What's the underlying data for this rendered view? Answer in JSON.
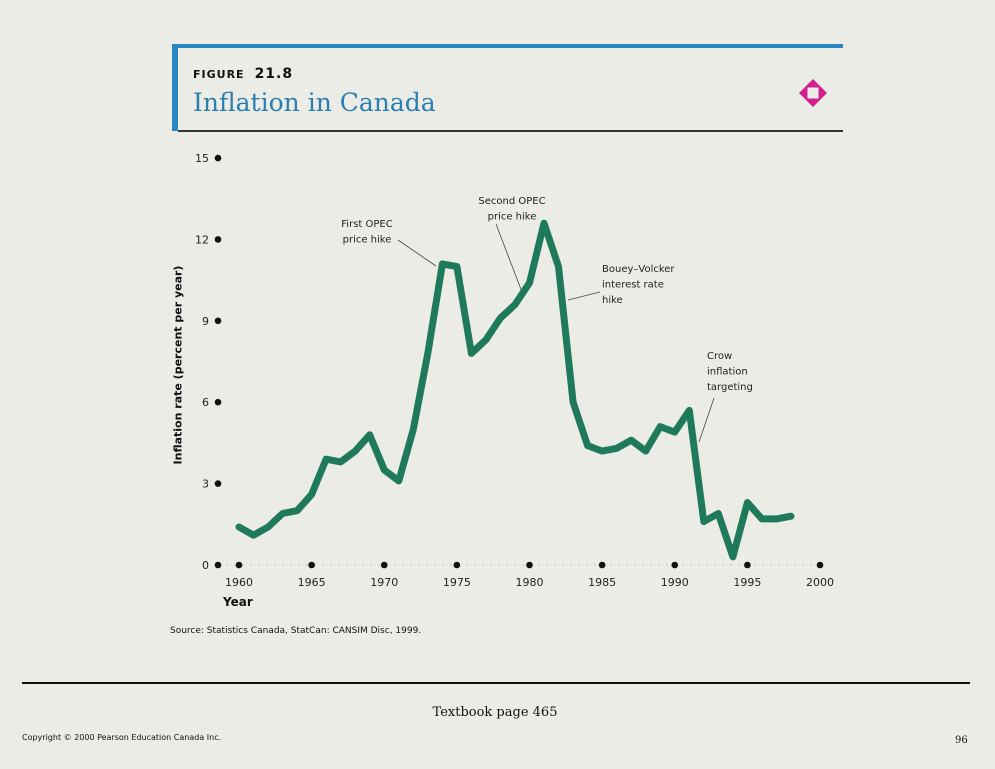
{
  "header": {
    "figure_label": "FIGURE",
    "figure_number": "21.8",
    "title": "Inflation in Canada",
    "accent_color": "#2a86c0",
    "icon": "diamond-icon",
    "icon_color": "#d0208f"
  },
  "chart_data": {
    "type": "line",
    "title": "Inflation in Canada",
    "xlabel": "Year",
    "ylabel": "Inflation rate (percent per year)",
    "xlim": [
      1958,
      2000
    ],
    "ylim": [
      0,
      15
    ],
    "x_ticks": [
      "1960",
      "1965",
      "1970",
      "1975",
      "1980",
      "1985",
      "1990",
      "1995",
      "2000"
    ],
    "y_ticks": [
      "0",
      "3",
      "6",
      "9",
      "12",
      "15"
    ],
    "grid": false,
    "line_color": "#1f7a5c",
    "series": [
      {
        "name": "Inflation rate",
        "x": [
          1960,
          1961,
          1962,
          1963,
          1964,
          1965,
          1966,
          1967,
          1968,
          1969,
          1970,
          1971,
          1972,
          1973,
          1974,
          1975,
          1976,
          1977,
          1978,
          1979,
          1980,
          1981,
          1982,
          1983,
          1984,
          1985,
          1986,
          1987,
          1988,
          1989,
          1990,
          1991,
          1992,
          1993,
          1994,
          1995,
          1996,
          1997,
          1998
        ],
        "values": [
          1.4,
          1.1,
          1.4,
          1.9,
          2.0,
          2.6,
          3.9,
          3.8,
          4.2,
          4.8,
          3.5,
          3.1,
          5.0,
          7.8,
          11.1,
          11.0,
          7.8,
          8.3,
          9.1,
          9.6,
          10.4,
          12.6,
          11.0,
          6.0,
          4.4,
          4.2,
          4.3,
          4.6,
          4.2,
          5.1,
          4.9,
          5.7,
          1.6,
          1.9,
          0.3,
          2.3,
          1.7,
          1.7,
          1.8
        ]
      }
    ],
    "annotations": [
      {
        "lines": [
          "First OPEC",
          "price hike"
        ]
      },
      {
        "lines": [
          "Second OPEC",
          "price hike"
        ]
      },
      {
        "lines": [
          "Bouey–Volcker",
          "interest rate",
          "hike"
        ]
      },
      {
        "lines": [
          "Crow",
          "inflation",
          "targeting"
        ]
      }
    ]
  },
  "source": "Source: Statistics Canada, StatCan: CANSIM Disc, 1999.",
  "footer": {
    "page_ref": "Textbook page 465",
    "copyright": "Copyright © 2000 Pearson Education Canada Inc.",
    "page_number": "96"
  }
}
